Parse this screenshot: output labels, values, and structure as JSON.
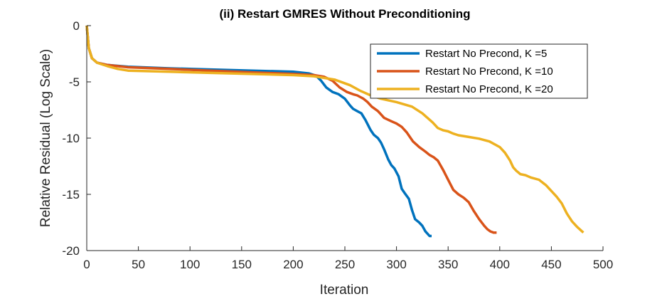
{
  "chart_data": {
    "type": "line",
    "title": "(ii) Restart GMRES Without Preconditioning",
    "xlabel": "Iteration",
    "ylabel": "Relative Residual (Log Scale)",
    "xlim": [
      0,
      500
    ],
    "ylim": [
      -20,
      0
    ],
    "xticks": [
      0,
      50,
      100,
      150,
      200,
      250,
      300,
      350,
      400,
      450,
      500
    ],
    "yticks": [
      0,
      -5,
      -10,
      -15,
      -20
    ],
    "grid": false,
    "legend_position": "top-right",
    "series": [
      {
        "name": "Restart No Precond, K =5",
        "color": "#0072BD",
        "x": [
          0,
          2,
          5,
          10,
          20,
          40,
          80,
          120,
          160,
          200,
          215,
          222,
          227,
          232,
          238,
          244,
          250,
          255,
          258,
          262,
          266,
          270,
          275,
          278,
          282,
          285,
          288,
          292,
          295,
          298,
          302,
          305,
          308,
          312,
          315,
          318,
          322,
          325,
          328,
          332,
          334
        ],
        "y": [
          0,
          -2.0,
          -2.9,
          -3.3,
          -3.5,
          -3.65,
          -3.8,
          -3.9,
          -4.0,
          -4.1,
          -4.25,
          -4.45,
          -4.9,
          -5.5,
          -5.9,
          -6.1,
          -6.5,
          -7.1,
          -7.4,
          -7.6,
          -7.8,
          -8.4,
          -9.3,
          -9.7,
          -10.0,
          -10.4,
          -11.0,
          -11.9,
          -12.4,
          -12.7,
          -13.4,
          -14.5,
          -14.9,
          -15.4,
          -16.4,
          -17.2,
          -17.5,
          -17.8,
          -18.3,
          -18.7,
          -18.7
        ]
      },
      {
        "name": "Restart No Precond, K =10",
        "color": "#D95319",
        "x": [
          0,
          2,
          5,
          10,
          20,
          40,
          80,
          120,
          160,
          200,
          220,
          230,
          238,
          245,
          252,
          258,
          262,
          268,
          272,
          276,
          282,
          288,
          295,
          300,
          305,
          310,
          316,
          322,
          328,
          332,
          336,
          340,
          345,
          350,
          355,
          360,
          365,
          370,
          375,
          380,
          385,
          388,
          391,
          394,
          397
        ],
        "y": [
          0,
          -2.0,
          -2.9,
          -3.3,
          -3.5,
          -3.7,
          -3.85,
          -4.0,
          -4.15,
          -4.3,
          -4.4,
          -4.55,
          -4.9,
          -5.5,
          -5.9,
          -6.1,
          -6.2,
          -6.5,
          -6.8,
          -7.2,
          -7.6,
          -8.2,
          -8.5,
          -8.7,
          -9.0,
          -9.5,
          -10.3,
          -10.8,
          -11.2,
          -11.5,
          -11.7,
          -12.0,
          -12.8,
          -13.7,
          -14.6,
          -15.0,
          -15.3,
          -15.7,
          -16.5,
          -17.2,
          -17.8,
          -18.1,
          -18.3,
          -18.4,
          -18.4
        ]
      },
      {
        "name": "Restart No Precond, K =20",
        "color": "#EDB120",
        "x": [
          0,
          2,
          5,
          10,
          20,
          30,
          40,
          80,
          120,
          160,
          200,
          220,
          240,
          255,
          265,
          275,
          285,
          300,
          315,
          325,
          335,
          340,
          345,
          350,
          355,
          360,
          370,
          380,
          390,
          400,
          405,
          410,
          413,
          416,
          420,
          425,
          430,
          438,
          445,
          450,
          455,
          460,
          465,
          470,
          475,
          481
        ],
        "y": [
          0,
          -2.0,
          -2.9,
          -3.3,
          -3.6,
          -3.85,
          -4.0,
          -4.1,
          -4.2,
          -4.3,
          -4.4,
          -4.5,
          -4.8,
          -5.3,
          -5.8,
          -6.2,
          -6.5,
          -6.8,
          -7.2,
          -7.8,
          -8.6,
          -9.1,
          -9.3,
          -9.4,
          -9.6,
          -9.75,
          -9.9,
          -10.05,
          -10.3,
          -10.8,
          -11.3,
          -12.0,
          -12.6,
          -12.9,
          -13.2,
          -13.3,
          -13.5,
          -13.7,
          -14.2,
          -14.7,
          -15.2,
          -15.8,
          -16.7,
          -17.4,
          -17.9,
          -18.4
        ]
      }
    ]
  }
}
